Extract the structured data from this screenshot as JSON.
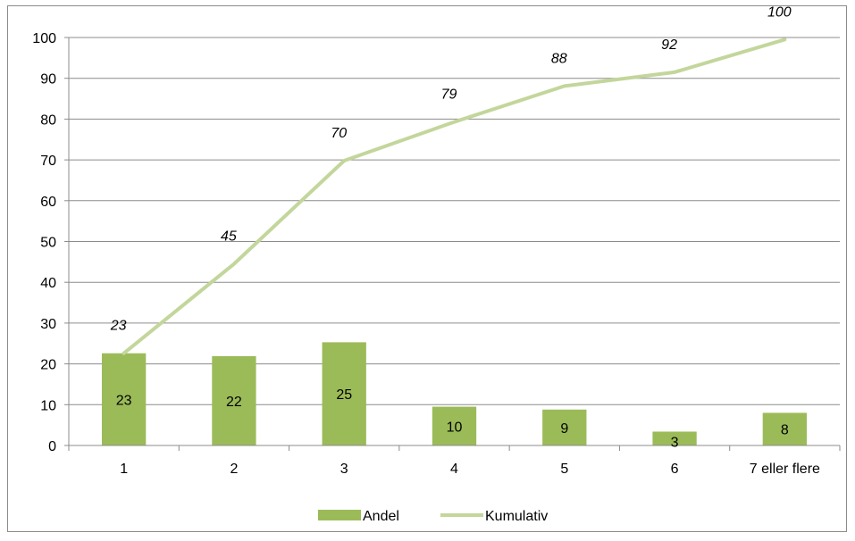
{
  "chart_data": {
    "type": "bar",
    "categories": [
      "1",
      "2",
      "3",
      "4",
      "5",
      "6",
      "7 eller flere"
    ],
    "series": [
      {
        "name": "Andel",
        "type": "bar",
        "values": [
          22.6,
          21.9,
          25.3,
          9.5,
          8.8,
          3.4,
          8.0
        ],
        "labels": [
          "23",
          "22",
          "25",
          "10",
          "9",
          "3",
          "8"
        ],
        "color": "#9bbb59"
      },
      {
        "name": "Kumulativ",
        "type": "line",
        "values": [
          22.6,
          44.5,
          69.8,
          79.3,
          88.1,
          91.5,
          99.5
        ],
        "labels": [
          "23",
          "45",
          "70",
          "79",
          "88",
          "92",
          "100"
        ],
        "color": "#c3d69b"
      }
    ],
    "ylim": [
      0,
      100
    ],
    "yticks": [
      "0",
      "10",
      "20",
      "30",
      "40",
      "50",
      "60",
      "70",
      "80",
      "90",
      "100"
    ],
    "grid": true,
    "legend": "bottom"
  }
}
